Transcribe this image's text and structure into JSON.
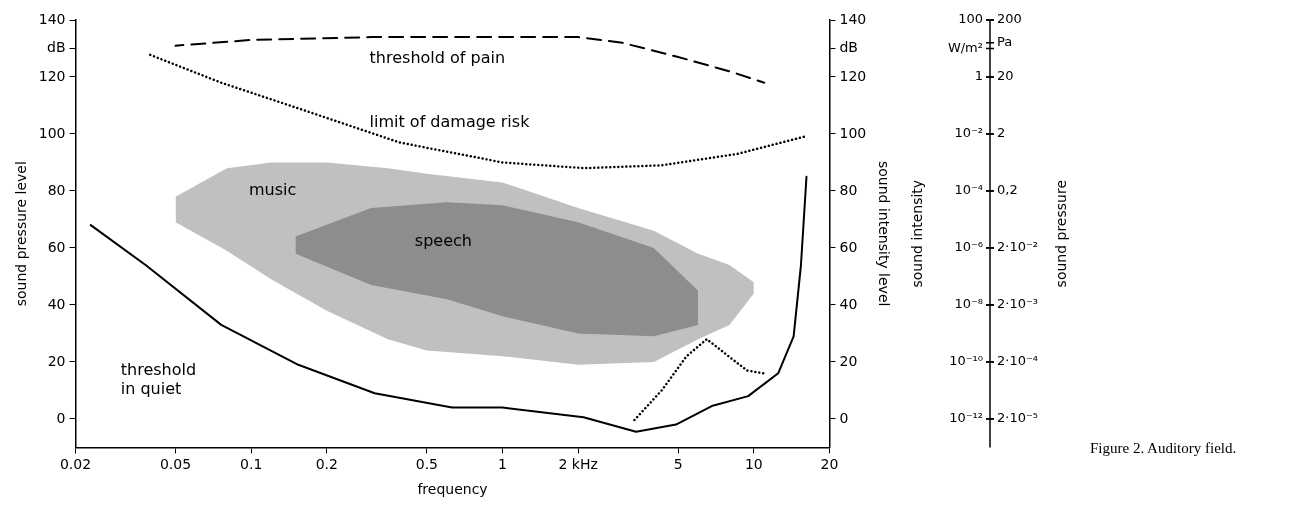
{
  "chart_data": {
    "type": "line",
    "xlabel": "frequency",
    "ylabel": "sound pressure level",
    "y2label": "sound intensity level",
    "log": "x",
    "grid": false,
    "legend": false,
    "marker": "none",
    "xlim": [
      0.02,
      20
    ],
    "xticks": [
      0.02,
      0.05,
      0.1,
      0.2,
      0.5,
      1,
      {
        "value": 2,
        "label": "2 kHz"
      },
      5,
      10,
      20
    ],
    "ylim": [
      -10,
      140
    ],
    "yticks": [
      0,
      20,
      40,
      60,
      80,
      100,
      120,
      {
        "value": 130,
        "label": "dB"
      },
      140
    ],
    "y2lim": [
      -10,
      140
    ],
    "y2ticks": [
      0,
      20,
      40,
      60,
      80,
      100,
      120,
      {
        "value": 130,
        "label": "dB"
      },
      140
    ],
    "series": [
      {
        "color": "#888888",
        "x": [
          0.05,
          0.08,
          0.12,
          0.2,
          0.35,
          0.5,
          1,
          2,
          4,
          6,
          8,
          10
        ],
        "values": [
          null,
          null,
          null,
          null,
          null,
          null,
          null,
          null,
          null,
          null,
          null,
          null
        ],
        "lower": [
          69,
          59,
          49,
          38,
          28,
          24,
          22,
          19,
          20,
          28,
          33,
          44
        ],
        "upper": [
          78,
          88,
          90,
          90,
          88,
          86,
          83,
          74,
          66,
          58,
          54,
          48
        ]
      },
      {
        "color": "#333333",
        "x": [
          0.15,
          0.3,
          0.6,
          1,
          2,
          4,
          6
        ],
        "values": [
          null,
          null,
          null,
          null,
          null,
          null,
          null
        ],
        "lower": [
          58,
          47,
          42,
          36,
          30,
          29,
          33
        ],
        "upper": [
          64,
          74,
          76,
          75,
          69,
          60,
          45
        ]
      },
      {
        "color": "#000000",
        "line_style": "dashed",
        "x": [
          0.05,
          0.1,
          0.3,
          1,
          2,
          3,
          5,
          8,
          11
        ],
        "values": [
          131,
          133,
          134,
          134,
          134,
          132,
          127,
          122,
          118
        ]
      },
      {
        "color": "#000000",
        "line_style": "dotted",
        "x": [
          0.039,
          0.076,
          0.154,
          0.39,
          1,
          2.1,
          4.3,
          8.6,
          15.8
        ],
        "values": [
          128,
          118,
          109,
          97,
          90,
          88,
          89,
          93,
          99
        ]
      },
      {
        "color": "#000000",
        "line_style": "solid",
        "x": [
          0.023,
          0.038,
          0.076,
          0.154,
          0.31,
          0.63,
          1,
          2.1,
          3.4,
          4.9,
          6.8,
          9.5,
          12.5,
          14.4,
          15.4,
          16.2
        ],
        "values": [
          68,
          54,
          33,
          19,
          9,
          4,
          4,
          0.6,
          -4.5,
          -2,
          4.5,
          8,
          16,
          29,
          54,
          85
        ]
      },
      {
        "color": "#000000",
        "line_style": "dotted",
        "x": [
          3.3,
          4.3,
          5.4,
          6.5,
          8.2,
          9.4,
          10.9
        ],
        "values": [
          -1,
          10,
          22,
          28,
          21,
          17,
          16
        ]
      }
    ],
    "annotations": [
      "threshold of pain",
      "limit of damage risk",
      "music",
      "speech",
      "threshold\nin quiet",
      "sound intensity",
      "sound pressure",
      "100",
      "W/m²",
      "1",
      "10⁻²",
      "10⁻⁴",
      "10⁻⁶",
      "10⁻⁸",
      "10⁻¹⁰",
      "10⁻¹²",
      "200",
      "Pa",
      "20",
      "2",
      "0,2",
      "2·10⁻²",
      "2·10⁻³",
      "2·10⁻⁴",
      "2·10⁻⁵",
      "Figure 2. Auditory field."
    ]
  }
}
